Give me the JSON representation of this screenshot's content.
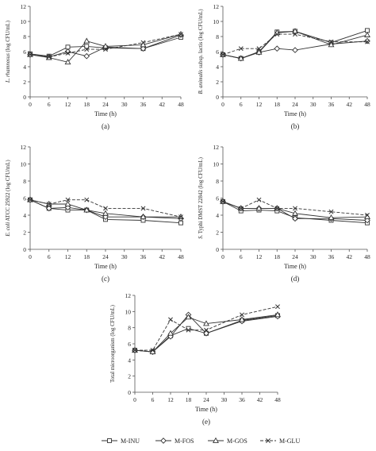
{
  "chart_data": [
    {
      "type": "line",
      "panel_label": "(a)",
      "xlabel": "Time (h)",
      "ylabel": "L. rhamnosus (log CFU/mL)",
      "ylabel_italic": "L. rhamnosus",
      "ylabel_rest": " (log CFU/mL)",
      "x": [
        0,
        6,
        12,
        18,
        24,
        36,
        48
      ],
      "xlim": [
        0,
        48
      ],
      "xticks": [
        0,
        6,
        12,
        18,
        24,
        30,
        36,
        42,
        48
      ],
      "ylim": [
        0,
        12
      ],
      "yticks": [
        0,
        2,
        4,
        6,
        8,
        10,
        12
      ],
      "grid": false,
      "series": [
        {
          "name": "M-INU",
          "values": [
            5.7,
            5.4,
            6.6,
            6.7,
            6.5,
            6.4,
            7.9
          ]
        },
        {
          "name": "M-FOS",
          "values": [
            5.6,
            5.3,
            6.0,
            5.4,
            6.6,
            6.4,
            8.2
          ]
        },
        {
          "name": "M-GOS",
          "values": [
            5.6,
            5.2,
            4.6,
            7.4,
            6.7,
            6.9,
            8.3
          ]
        },
        {
          "name": "M-GLU",
          "values": [
            5.6,
            5.3,
            5.8,
            6.3,
            6.3,
            7.2,
            8.3
          ]
        }
      ]
    },
    {
      "type": "line",
      "panel_label": "(b)",
      "xlabel": "Time (h)",
      "ylabel": "B. animalis subsp. lactis (log CFU/mL)",
      "ylabel_italic": "B. animalis",
      "ylabel_rest": " subsp. lactis (log CFU/mL)",
      "x": [
        0,
        6,
        12,
        18,
        24,
        36,
        48
      ],
      "xlim": [
        0,
        48
      ],
      "xticks": [
        0,
        6,
        12,
        18,
        24,
        30,
        36,
        42,
        48
      ],
      "ylim": [
        0,
        12
      ],
      "yticks": [
        0,
        2,
        4,
        6,
        8,
        10,
        12
      ],
      "grid": false,
      "series": [
        {
          "name": "M-INU",
          "values": [
            5.6,
            5.1,
            6.0,
            8.6,
            8.7,
            7.2,
            8.8
          ]
        },
        {
          "name": "M-FOS",
          "values": [
            5.6,
            5.1,
            5.9,
            6.4,
            6.2,
            7.0,
            7.4
          ]
        },
        {
          "name": "M-GOS",
          "values": [
            5.6,
            5.1,
            5.9,
            8.5,
            8.7,
            6.9,
            8.2
          ]
        },
        {
          "name": "M-GLU",
          "values": [
            5.6,
            6.4,
            6.4,
            8.3,
            8.3,
            7.3,
            7.3
          ]
        }
      ]
    },
    {
      "type": "line",
      "panel_label": "(c)",
      "xlabel": "Time (h)",
      "ylabel": "E. coli ATCC 25922 (log CFU/mL)",
      "ylabel_italic": "E. coli",
      "ylabel_rest": " ATCC 25922 (log CFU/mL)",
      "x": [
        0,
        6,
        12,
        18,
        24,
        36,
        48
      ],
      "xlim": [
        0,
        48
      ],
      "xticks": [
        0,
        6,
        12,
        18,
        24,
        30,
        36,
        42,
        48
      ],
      "ylim": [
        0,
        12
      ],
      "yticks": [
        0,
        2,
        4,
        6,
        8,
        10,
        12
      ],
      "grid": false,
      "series": [
        {
          "name": "M-INU",
          "values": [
            5.8,
            4.8,
            4.6,
            4.6,
            3.5,
            3.4,
            3.1
          ]
        },
        {
          "name": "M-FOS",
          "values": [
            5.8,
            4.8,
            4.9,
            4.6,
            3.8,
            3.8,
            3.6
          ]
        },
        {
          "name": "M-GOS",
          "values": [
            5.8,
            5.3,
            5.3,
            4.6,
            4.2,
            3.8,
            3.8
          ]
        },
        {
          "name": "M-GLU",
          "values": [
            5.8,
            5.3,
            5.8,
            5.8,
            4.8,
            4.8,
            3.8
          ]
        }
      ]
    },
    {
      "type": "line",
      "panel_label": "(d)",
      "xlabel": "Time (h)",
      "ylabel": "S. Typhi DMST 22842 (log CFU/mL)",
      "ylabel_italic": "S.",
      "ylabel_rest": " Typhi DMST 22842 (log CFU/mL)",
      "x": [
        0,
        6,
        12,
        18,
        24,
        36,
        48
      ],
      "xlim": [
        0,
        48
      ],
      "xticks": [
        0,
        6,
        12,
        18,
        24,
        30,
        36,
        42,
        48
      ],
      "ylim": [
        0,
        12
      ],
      "yticks": [
        0,
        2,
        4,
        6,
        8,
        10,
        12
      ],
      "grid": false,
      "series": [
        {
          "name": "M-INU",
          "values": [
            5.6,
            4.5,
            4.6,
            4.5,
            3.7,
            3.4,
            3.1
          ]
        },
        {
          "name": "M-FOS",
          "values": [
            5.6,
            4.8,
            4.8,
            4.8,
            3.6,
            3.6,
            3.4
          ]
        },
        {
          "name": "M-GOS",
          "values": [
            5.6,
            4.8,
            4.8,
            4.8,
            4.2,
            3.7,
            3.8
          ]
        },
        {
          "name": "M-GLU",
          "values": [
            5.6,
            4.8,
            5.8,
            4.8,
            4.8,
            4.4,
            4.0
          ]
        }
      ]
    },
    {
      "type": "line",
      "panel_label": "(e)",
      "xlabel": "Time (h)",
      "ylabel": "Total microorganism (log CFU/mL)",
      "ylabel_italic": "",
      "ylabel_rest": "Total microorganism (log CFU/mL)",
      "x": [
        0,
        6,
        12,
        18,
        24,
        36,
        48
      ],
      "xlim": [
        0,
        48
      ],
      "xticks": [
        0,
        6,
        12,
        18,
        24,
        30,
        36,
        42,
        48
      ],
      "ylim": [
        0,
        12
      ],
      "yticks": [
        0,
        2,
        4,
        6,
        8,
        10,
        12
      ],
      "grid": false,
      "series": [
        {
          "name": "M-INU",
          "values": [
            5.2,
            5.0,
            7.0,
            7.9,
            7.3,
            8.9,
            9.5
          ]
        },
        {
          "name": "M-FOS",
          "values": [
            5.2,
            5.0,
            6.9,
            9.6,
            7.3,
            8.8,
            9.4
          ]
        },
        {
          "name": "M-GOS",
          "values": [
            5.2,
            5.0,
            7.3,
            9.3,
            8.5,
            9.0,
            9.6
          ]
        },
        {
          "name": "M-GLU",
          "values": [
            5.2,
            5.2,
            9.0,
            7.7,
            7.7,
            9.6,
            10.6
          ]
        }
      ]
    }
  ],
  "legend": {
    "placement": "bottom-center",
    "items": [
      {
        "name": "M-INU",
        "marker": "square",
        "dash": "solid"
      },
      {
        "name": "M-FOS",
        "marker": "diamond",
        "dash": "solid"
      },
      {
        "name": "M-GOS",
        "marker": "triangle",
        "dash": "solid"
      },
      {
        "name": "M-GLU",
        "marker": "cross",
        "dash": "dashed"
      }
    ]
  },
  "colors": {
    "line": "#333333",
    "axis": "#555555",
    "text": "#222222"
  }
}
